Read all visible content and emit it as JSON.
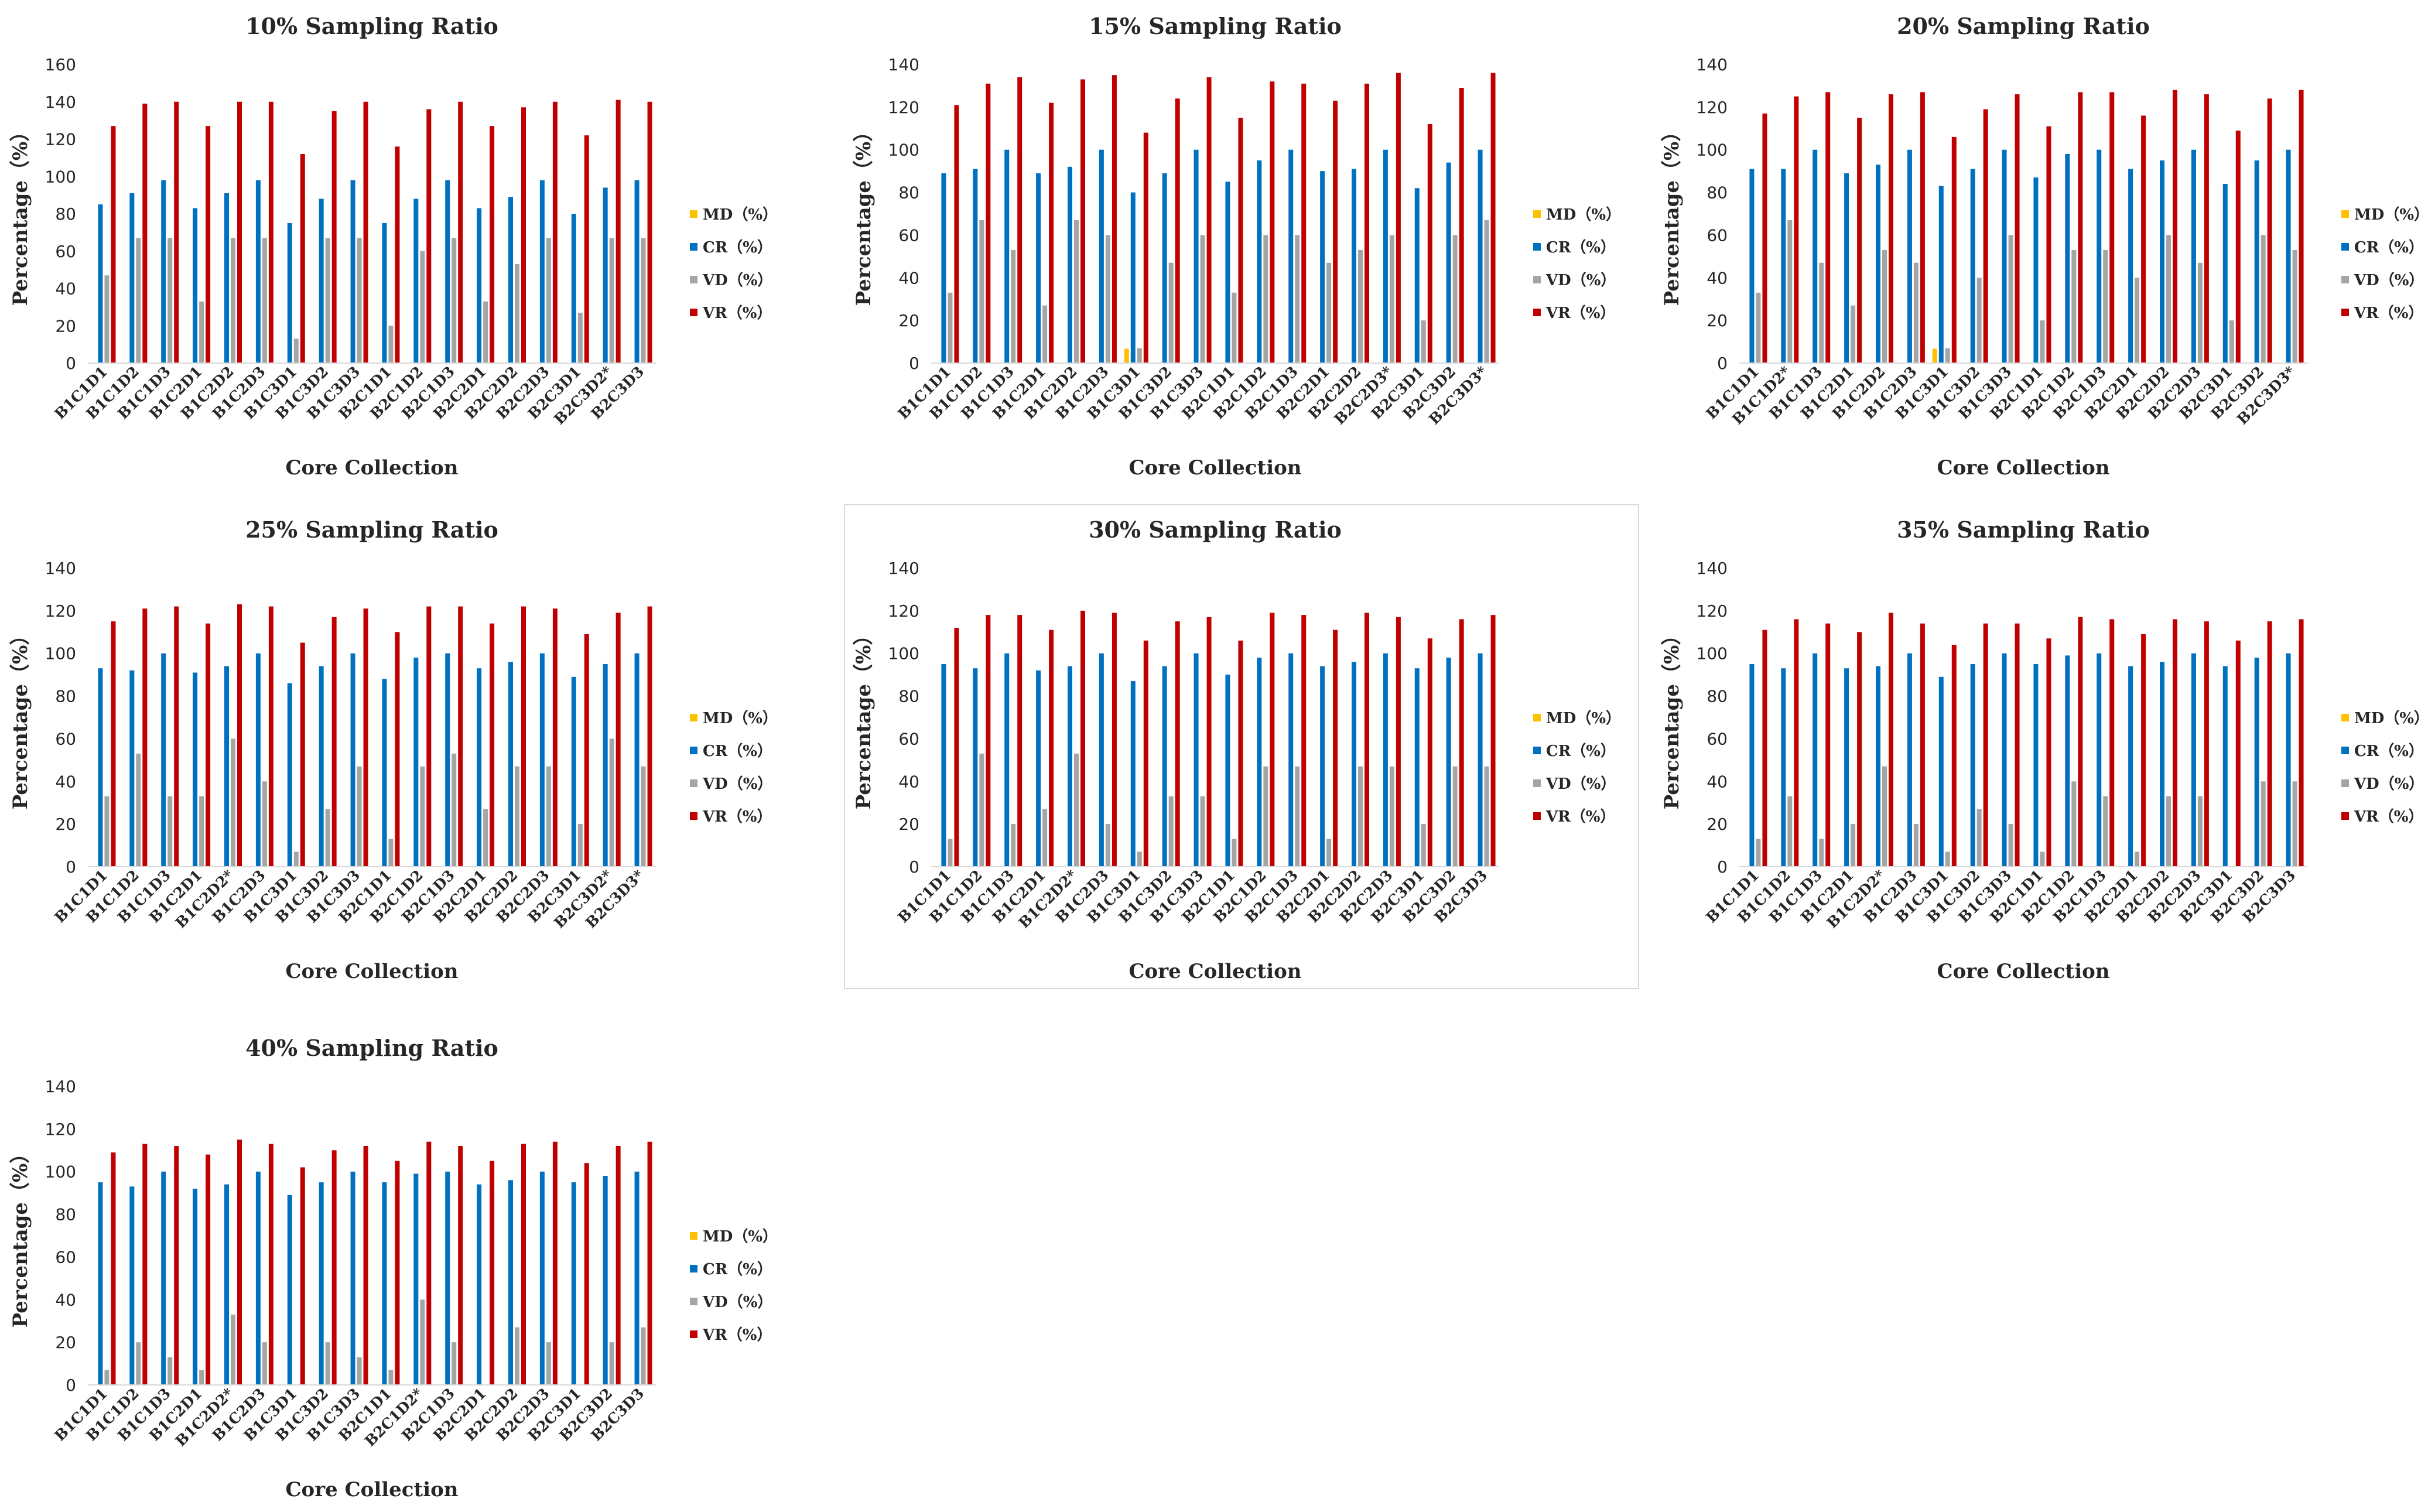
{
  "figure": {
    "series_names": [
      "MD（%）",
      "CR（%）",
      "VD（%）",
      "VR（%）"
    ],
    "series_colors": [
      "#FFC000",
      "#0070C0",
      "#A5A5A5",
      "#C00000"
    ]
  },
  "chart_data": [
    {
      "type": "bar",
      "title": "10% Sampling Ratio",
      "xlabel": "Core Collection",
      "ylabel": "Percentage（%）",
      "ylim": [
        0,
        160
      ],
      "yticks": [
        0,
        20,
        40,
        60,
        80,
        100,
        120,
        140,
        160
      ],
      "legend": "right",
      "categories": [
        "B1C1D1",
        "B1C1D2",
        "B1C1D3",
        "B1C2D1",
        "B1C2D2",
        "B1C2D3",
        "B1C3D1",
        "B1C3D2",
        "B1C3D3",
        "B2C1D1",
        "B2C1D2",
        "B2C1D3",
        "B2C2D1",
        "B2C2D2",
        "B2C2D3",
        "B2C3D1",
        "B2C3D2*",
        "B2C3D3"
      ],
      "series": [
        {
          "name": "MD（%）",
          "values": [
            0,
            0,
            0,
            0,
            0,
            0,
            0,
            0,
            0,
            0,
            0,
            0,
            0,
            0,
            0,
            0,
            0,
            0
          ]
        },
        {
          "name": "CR（%）",
          "values": [
            85,
            91,
            98,
            83,
            91,
            98,
            75,
            88,
            98,
            75,
            88,
            98,
            83,
            89,
            98,
            80,
            94,
            98
          ]
        },
        {
          "name": "VD（%）",
          "values": [
            47,
            67,
            67,
            33,
            67,
            67,
            13,
            67,
            67,
            20,
            60,
            67,
            33,
            53,
            67,
            27,
            67,
            67
          ]
        },
        {
          "name": "VR（%）",
          "values": [
            127,
            139,
            140,
            127,
            140,
            140,
            112,
            135,
            140,
            116,
            136,
            140,
            127,
            137,
            140,
            122,
            141,
            140
          ]
        }
      ]
    },
    {
      "type": "bar",
      "title": "15% Sampling Ratio",
      "xlabel": "Core Collection",
      "ylabel": "Percentage（%）",
      "ylim": [
        0,
        140
      ],
      "yticks": [
        0,
        20,
        40,
        60,
        80,
        100,
        120,
        140
      ],
      "legend": "right",
      "categories": [
        "B1C1D1",
        "B1C1D2",
        "B1C1D3",
        "B1C2D1",
        "B1C2D2",
        "B1C2D3",
        "B1C3D1",
        "B1C3D2",
        "B1C3D3",
        "B2C1D1",
        "B2C1D2",
        "B2C1D3",
        "B2C2D1",
        "B2C2D2",
        "B2C2D3*",
        "B2C3D1",
        "B2C3D2",
        "B2C3D3*"
      ],
      "series": [
        {
          "name": "MD（%）",
          "values": [
            0,
            0,
            0,
            0,
            0,
            0,
            6.7,
            0,
            0,
            0,
            0,
            0,
            0,
            0,
            0,
            0,
            0,
            0
          ]
        },
        {
          "name": "CR（%）",
          "values": [
            89,
            91,
            100,
            89,
            92,
            100,
            80,
            89,
            100,
            85,
            95,
            100,
            90,
            91,
            100,
            82,
            94,
            100
          ]
        },
        {
          "name": "VD（%）",
          "values": [
            33,
            67,
            53,
            27,
            67,
            60,
            7,
            47,
            60,
            33,
            60,
            60,
            47,
            53,
            60,
            20,
            60,
            67
          ]
        },
        {
          "name": "VR（%）",
          "values": [
            121,
            131,
            134,
            122,
            133,
            135,
            108,
            124,
            134,
            115,
            132,
            131,
            123,
            131,
            136,
            112,
            129,
            136
          ]
        }
      ]
    },
    {
      "type": "bar",
      "title": "20% Sampling Ratio",
      "xlabel": "Core Collection",
      "ylabel": "Percentage（%）",
      "ylim": [
        0,
        140
      ],
      "yticks": [
        0,
        20,
        40,
        60,
        80,
        100,
        120,
        140
      ],
      "legend": "right",
      "categories": [
        "B1C1D1",
        "B1C1D2*",
        "B1C1D3",
        "B1C2D1",
        "B1C2D2",
        "B1C2D3",
        "B1C3D1",
        "B1C3D2",
        "B1C3D3",
        "B2C1D1",
        "B2C1D2",
        "B2C1D3",
        "B2C2D1",
        "B2C2D2",
        "B2C2D3",
        "B2C3D1",
        "B2C3D2",
        "B2C3D3*"
      ],
      "series": [
        {
          "name": "MD（%）",
          "values": [
            0,
            0,
            0,
            0,
            0,
            0,
            6.7,
            0,
            0,
            0,
            0,
            0,
            0,
            0,
            0,
            0,
            0,
            0
          ]
        },
        {
          "name": "CR（%）",
          "values": [
            91,
            91,
            100,
            89,
            93,
            100,
            83,
            91,
            100,
            87,
            98,
            100,
            91,
            95,
            100,
            84,
            95,
            100
          ]
        },
        {
          "name": "VD（%）",
          "values": [
            33,
            67,
            47,
            27,
            53,
            47,
            7,
            40,
            60,
            20,
            53,
            53,
            40,
            60,
            47,
            20,
            60,
            53
          ]
        },
        {
          "name": "VR（%）",
          "values": [
            117,
            125,
            127,
            115,
            126,
            127,
            106,
            119,
            126,
            111,
            127,
            127,
            116,
            128,
            126,
            109,
            124,
            128
          ]
        }
      ]
    },
    {
      "type": "bar",
      "title": "25% Sampling Ratio",
      "xlabel": "Core Collection",
      "ylabel": "Percentage（%）",
      "ylim": [
        0,
        140
      ],
      "yticks": [
        0,
        20,
        40,
        60,
        80,
        100,
        120,
        140
      ],
      "legend": "right",
      "categories": [
        "B1C1D1",
        "B1C1D2",
        "B1C1D3",
        "B1C2D1",
        "B1C2D2*",
        "B1C2D3",
        "B1C3D1",
        "B1C3D2",
        "B1C3D3",
        "B2C1D1",
        "B2C1D2",
        "B2C1D3",
        "B2C2D1",
        "B2C2D2",
        "B2C2D3",
        "B2C3D1",
        "B2C3D2*",
        "B2C3D3*"
      ],
      "series": [
        {
          "name": "MD（%）",
          "values": [
            0,
            0,
            0,
            0,
            0,
            0,
            0,
            0,
            0,
            0,
            0,
            0,
            0,
            0,
            0,
            0,
            0,
            0
          ]
        },
        {
          "name": "CR（%）",
          "values": [
            93,
            92,
            100,
            91,
            94,
            100,
            86,
            94,
            100,
            88,
            98,
            100,
            93,
            96,
            100,
            89,
            95,
            100
          ]
        },
        {
          "name": "VD（%）",
          "values": [
            33,
            53,
            33,
            33,
            60,
            40,
            7,
            27,
            47,
            13,
            47,
            53,
            27,
            47,
            47,
            20,
            60,
            47
          ]
        },
        {
          "name": "VR（%）",
          "values": [
            115,
            121,
            122,
            114,
            123,
            122,
            105,
            117,
            121,
            110,
            122,
            122,
            114,
            122,
            121,
            109,
            119,
            122
          ]
        }
      ]
    },
    {
      "type": "bar",
      "title": "30% Sampling Ratio",
      "xlabel": "Core Collection",
      "ylabel": "Percentage（%）",
      "ylim": [
        0,
        140
      ],
      "yticks": [
        0,
        20,
        40,
        60,
        80,
        100,
        120,
        140
      ],
      "legend": "right",
      "categories": [
        "B1C1D1",
        "B1C1D2",
        "B1C1D3",
        "B1C2D1",
        "B1C2D2*",
        "B1C2D3",
        "B1C3D1",
        "B1C3D2",
        "B1C3D3",
        "B2C1D1",
        "B2C1D2",
        "B2C1D3",
        "B2C2D1",
        "B2C2D2",
        "B2C2D3",
        "B2C3D1",
        "B2C3D2",
        "B2C3D3"
      ],
      "series": [
        {
          "name": "MD（%）",
          "values": [
            0,
            0,
            0,
            0,
            0,
            0,
            0,
            0,
            0,
            0,
            0,
            0,
            0,
            0,
            0,
            0,
            0,
            0
          ]
        },
        {
          "name": "CR（%）",
          "values": [
            95,
            93,
            100,
            92,
            94,
            100,
            87,
            94,
            100,
            90,
            98,
            100,
            94,
            96,
            100,
            93,
            98,
            100
          ]
        },
        {
          "name": "VD（%）",
          "values": [
            13,
            53,
            20,
            27,
            53,
            20,
            7,
            33,
            33,
            13,
            47,
            47,
            13,
            47,
            47,
            20,
            47,
            47
          ]
        },
        {
          "name": "VR（%）",
          "values": [
            112,
            118,
            118,
            111,
            120,
            119,
            106,
            115,
            117,
            106,
            119,
            118,
            111,
            119,
            117,
            107,
            116,
            118
          ]
        }
      ]
    },
    {
      "type": "bar",
      "title": "35% Sampling Ratio",
      "xlabel": "Core Collection",
      "ylabel": "Percentage（%）",
      "ylim": [
        0,
        140
      ],
      "yticks": [
        0,
        20,
        40,
        60,
        80,
        100,
        120,
        140
      ],
      "legend": "right",
      "categories": [
        "B1C1D1",
        "B1C1D2",
        "B1C1D3",
        "B1C2D1",
        "B1C2D2*",
        "B1C2D3",
        "B1C3D1",
        "B1C3D2",
        "B1C3D3",
        "B2C1D1",
        "B2C1D2",
        "B2C1D3",
        "B2C2D1",
        "B2C2D2",
        "B2C2D3",
        "B2C3D1",
        "B2C3D2",
        "B2C3D3"
      ],
      "series": [
        {
          "name": "MD（%）",
          "values": [
            0,
            0,
            0,
            0,
            0,
            0,
            0,
            0,
            0,
            0,
            0,
            0,
            0,
            0,
            0,
            0,
            0,
            0
          ]
        },
        {
          "name": "CR（%）",
          "values": [
            95,
            93,
            100,
            93,
            94,
            100,
            89,
            95,
            100,
            95,
            99,
            100,
            94,
            96,
            100,
            94,
            98,
            100
          ]
        },
        {
          "name": "VD（%）",
          "values": [
            13,
            33,
            13,
            20,
            47,
            20,
            7,
            27,
            20,
            7,
            40,
            33,
            7,
            33,
            33,
            0,
            40,
            40
          ]
        },
        {
          "name": "VR（%）",
          "values": [
            111,
            116,
            114,
            110,
            119,
            114,
            104,
            114,
            114,
            107,
            117,
            116,
            109,
            116,
            115,
            106,
            115,
            116
          ]
        }
      ]
    },
    {
      "type": "bar",
      "title": "40% Sampling Ratio",
      "xlabel": "Core Collection",
      "ylabel": "Percentage（%）",
      "ylim": [
        0,
        140
      ],
      "yticks": [
        0,
        20,
        40,
        60,
        80,
        100,
        120,
        140
      ],
      "legend": "right",
      "categories": [
        "B1C1D1",
        "B1C1D2",
        "B1C1D3",
        "B1C2D1",
        "B1C2D2*",
        "B1C2D3",
        "B1C3D1",
        "B1C3D2",
        "B1C3D3",
        "B2C1D1",
        "B2C1D2*",
        "B2C1D3",
        "B2C2D1",
        "B2C2D2",
        "B2C2D3",
        "B2C3D1",
        "B2C3D2",
        "B2C3D3"
      ],
      "series": [
        {
          "name": "MD（%）",
          "values": [
            0,
            0,
            0,
            0,
            0,
            0,
            0,
            0,
            0,
            0,
            0,
            0,
            0,
            0,
            0,
            0,
            0,
            0
          ]
        },
        {
          "name": "CR（%）",
          "values": [
            95,
            93,
            100,
            92,
            94,
            100,
            89,
            95,
            100,
            95,
            99,
            100,
            94,
            96,
            100,
            95,
            98,
            100
          ]
        },
        {
          "name": "VD（%）",
          "values": [
            7,
            20,
            13,
            7,
            33,
            20,
            0,
            20,
            13,
            7,
            40,
            20,
            0,
            27,
            20,
            0,
            20,
            27
          ]
        },
        {
          "name": "VR（%）",
          "values": [
            109,
            113,
            112,
            108,
            115,
            113,
            102,
            110,
            112,
            105,
            114,
            112,
            105,
            113,
            114,
            104,
            112,
            114
          ]
        }
      ]
    }
  ]
}
